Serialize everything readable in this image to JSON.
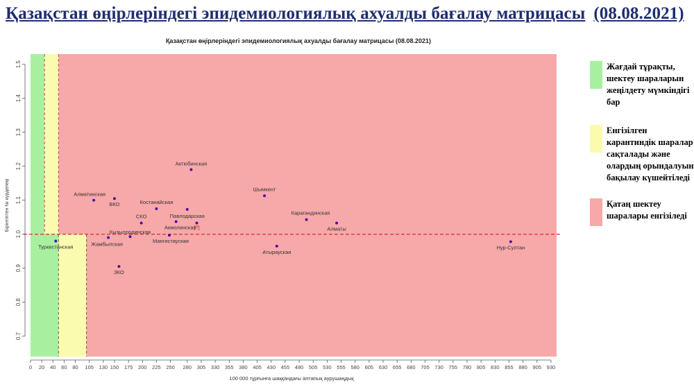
{
  "page": {
    "title": "Қазақстан өңірлеріндегі эпидемиологиялық ахуалды бағалау матрицасы",
    "date": "(08.08.2021)"
  },
  "legend": {
    "items": [
      {
        "key": "green",
        "color": "#a8f0a0",
        "label": "Жағдай тұрақты, шектеу шараларын жеңілдету мүмкіндігі бар"
      },
      {
        "key": "yellow",
        "color": "#fbfbb0",
        "label": "Енгізілген карантиндік шаралар сақталады және олардың орындалуын бақылау күшейтіледі"
      },
      {
        "key": "red",
        "color": "#f7a8a8",
        "label": "Қатаң шектеу шаралары енгізіледі"
      }
    ]
  },
  "chart_data": {
    "type": "scatter",
    "title": "Қазақстан өңірлеріндегі эпидемиологиялық ахуалды бағалау матрицасы  (08.08.2021)",
    "xlabel": "100 000 тұрғынға шаққандағы аптапық аурушаңдық",
    "ylabel": "Бірінтіптен № күрделеқі",
    "xlim": [
      0,
      940
    ],
    "ylim": [
      0.64,
      1.53
    ],
    "x_ticks": [
      0,
      20,
      40,
      60,
      80,
      105,
      130,
      150,
      175,
      200,
      225,
      250,
      280,
      305,
      330,
      355,
      380,
      405,
      430,
      455,
      480,
      505,
      530,
      555,
      580,
      605,
      630,
      655,
      680,
      705,
      730,
      755,
      780,
      805,
      830,
      855,
      880,
      905,
      930
    ],
    "x_tick_labels": [
      "0",
      "20",
      "40",
      "60",
      "80",
      "105",
      "130",
      "150",
      "175",
      "200",
      "225",
      "250",
      "280",
      "305",
      "330",
      "355",
      "380",
      "405",
      "430",
      "455",
      "480",
      "505",
      "530",
      "555",
      "580",
      "605",
      "630",
      "655",
      "680",
      "705",
      "730",
      "755",
      "780",
      "805",
      "830",
      "855",
      "880",
      "905",
      "930"
    ],
    "y_ticks": [
      0.7,
      0.8,
      0.9,
      1.0,
      1.1,
      1.2,
      1.3,
      1.4,
      1.5
    ],
    "y_tick_labels": [
      "0.7",
      "0.8",
      "0.9",
      "1.0",
      "1.1",
      "1.2",
      "1.3",
      "1.4",
      "1.5"
    ],
    "reference_line_y": 1.0,
    "zones": {
      "upper": [
        {
          "color": "#a8f0a0",
          "x": [
            0,
            25
          ]
        },
        {
          "color": "#fbfbb0",
          "x": [
            25,
            50
          ]
        },
        {
          "color": "#f7a8a8",
          "x": [
            50,
            940
          ]
        }
      ],
      "lower": [
        {
          "color": "#a8f0a0",
          "x": [
            0,
            50
          ]
        },
        {
          "color": "#fbfbb0",
          "x": [
            50,
            100
          ]
        },
        {
          "color": "#f7a8a8",
          "x": [
            100,
            940
          ]
        }
      ]
    },
    "zone_lines_upper_x": [
      25,
      50
    ],
    "zone_lines_lower_x": [
      50,
      100
    ],
    "points": [
      {
        "label": "Актюбинская",
        "x": 287,
        "y": 1.19
      },
      {
        "label": "Алматинская",
        "x": 113,
        "y": 1.1
      },
      {
        "label": "ВКО",
        "x": 150,
        "y": 1.105
      },
      {
        "label": "Шымкент",
        "x": 418,
        "y": 1.113
      },
      {
        "label": "Костанайская",
        "x": 225,
        "y": 1.075
      },
      {
        "label": "Павлодарская",
        "x": 280,
        "y": 1.073
      },
      {
        "label": "СКО",
        "x": 198,
        "y": 1.033
      },
      {
        "label": "Акмолинская",
        "x": 260,
        "y": 1.037
      },
      {
        "label": "[?]",
        "x": 297,
        "y": 1.033
      },
      {
        "label": "Карагандинская",
        "x": 493,
        "y": 1.043
      },
      {
        "label": "Алматы",
        "x": 547,
        "y": 1.033
      },
      {
        "label": "Кызылординская",
        "x": 178,
        "y": 0.993
      },
      {
        "label": "Жамбылская",
        "x": 139,
        "y": 0.99
      },
      {
        "label": "Мангистауская",
        "x": 248,
        "y": 0.997
      },
      {
        "label": "Туркестанская",
        "x": 45,
        "y": 0.98
      },
      {
        "label": "Атырауская",
        "x": 440,
        "y": 0.965
      },
      {
        "label": "ЗКО",
        "x": 158,
        "y": 0.905
      },
      {
        "label": "Нур-Султан",
        "x": 858,
        "y": 0.978
      }
    ]
  }
}
